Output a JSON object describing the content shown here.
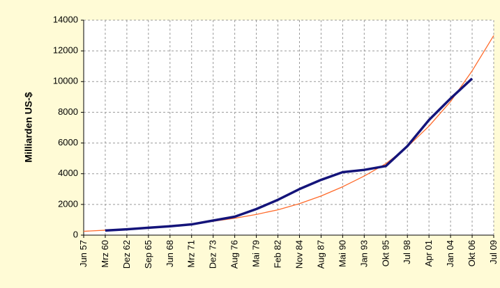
{
  "chart_data": {
    "type": "line",
    "ylabel": "Milliarden US-$",
    "categories": [
      "Jun 57",
      "Mrz 60",
      "Dez 62",
      "Sep 65",
      "Jun 68",
      "Mrz 71",
      "Dez 73",
      "Aug 76",
      "Mai 79",
      "Feb 82",
      "Nov 84",
      "Aug 87",
      "Mai 90",
      "Jan 93",
      "Okt 95",
      "Jul 98",
      "Apr 01",
      "Jan 04",
      "Okt 06",
      "Jul 09"
    ],
    "series": [
      {
        "color": "#ff6a2a",
        "width": 1.3,
        "values": [
          250,
          320,
          400,
          480,
          580,
          700,
          900,
          1100,
          1350,
          1650,
          2050,
          2550,
          3150,
          3850,
          4650,
          5750,
          7100,
          8700,
          10700,
          13000
        ]
      },
      {
        "color": "#14147a",
        "width": 3.5,
        "values": [
          null,
          300,
          380,
          480,
          580,
          700,
          950,
          1200,
          1700,
          2300,
          3000,
          3600,
          4100,
          4250,
          4500,
          5800,
          7500,
          8900,
          10200,
          null
        ]
      }
    ],
    "ylim": [
      0,
      14000
    ],
    "yticks": [
      0,
      2000,
      4000,
      6000,
      8000,
      10000,
      12000,
      14000
    ],
    "grid": true
  }
}
